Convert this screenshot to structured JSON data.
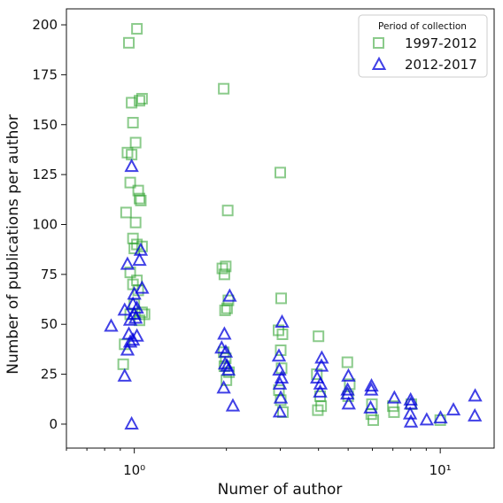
{
  "chart_data": {
    "type": "scatter",
    "xlabel": "Numer of author",
    "ylabel": "Number of publications per author",
    "xscale": "log",
    "xlim": [
      0.6,
      15
    ],
    "ylim": [
      -12,
      208
    ],
    "yticks": [
      0,
      25,
      50,
      75,
      100,
      125,
      150,
      175,
      200
    ],
    "xticks": [
      {
        "value": 1,
        "label": "10⁰"
      },
      {
        "value": 10,
        "label": "10¹"
      }
    ],
    "grid": false,
    "legend": {
      "title": "Period of collection",
      "placement": "top-right"
    },
    "series": [
      {
        "name": "1997-2012",
        "marker": "square",
        "color": "#2ca02c",
        "points": [
          [
            0.96,
            191
          ],
          [
            1.02,
            198
          ],
          [
            0.98,
            161
          ],
          [
            1.04,
            162
          ],
          [
            0.99,
            151
          ],
          [
            1.06,
            163
          ],
          [
            0.95,
            136
          ],
          [
            0.98,
            135
          ],
          [
            1.01,
            141
          ],
          [
            0.97,
            121
          ],
          [
            1.03,
            117
          ],
          [
            1.04,
            113
          ],
          [
            1.05,
            112
          ],
          [
            0.94,
            106
          ],
          [
            1.01,
            101
          ],
          [
            0.99,
            93
          ],
          [
            1.02,
            90
          ],
          [
            1.06,
            89
          ],
          [
            1.0,
            88
          ],
          [
            0.97,
            76
          ],
          [
            1.02,
            72
          ],
          [
            0.99,
            70
          ],
          [
            1.03,
            67
          ],
          [
            1.08,
            55
          ],
          [
            1.06,
            56
          ],
          [
            1.0,
            60
          ],
          [
            1.04,
            52
          ],
          [
            0.97,
            55
          ],
          [
            0.93,
            40
          ],
          [
            0.92,
            30
          ],
          [
            1.96,
            168
          ],
          [
            2.02,
            107
          ],
          [
            1.94,
            78
          ],
          [
            1.99,
            79
          ],
          [
            1.97,
            75
          ],
          [
            2.03,
            62
          ],
          [
            1.98,
            57
          ],
          [
            2.01,
            58
          ],
          [
            1.96,
            36
          ],
          [
            1.99,
            33
          ],
          [
            1.97,
            29
          ],
          [
            2.0,
            22
          ],
          [
            2.04,
            26
          ],
          [
            3.0,
            126
          ],
          [
            3.02,
            63
          ],
          [
            2.96,
            47
          ],
          [
            3.05,
            45
          ],
          [
            3.01,
            37
          ],
          [
            3.03,
            28
          ],
          [
            2.97,
            17
          ],
          [
            3.01,
            12
          ],
          [
            3.06,
            6
          ],
          [
            4.0,
            44
          ],
          [
            3.95,
            25
          ],
          [
            4.05,
            14
          ],
          [
            3.98,
            7
          ],
          [
            4.08,
            9
          ],
          [
            4.97,
            31
          ],
          [
            5.06,
            20
          ],
          [
            5.0,
            14
          ],
          [
            5.95,
            5
          ],
          [
            6.04,
            2
          ],
          [
            5.98,
            10
          ],
          [
            7.0,
            9
          ],
          [
            7.06,
            6
          ],
          [
            8.04,
            10
          ],
          [
            10.0,
            2
          ]
        ]
      },
      {
        "name": "2012-2017",
        "marker": "triangle",
        "color": "#0000dd",
        "points": [
          [
            0.98,
            129
          ],
          [
            0.95,
            80
          ],
          [
            1.04,
            82
          ],
          [
            1.05,
            87
          ],
          [
            1.06,
            68
          ],
          [
            1.0,
            65
          ],
          [
            0.99,
            60
          ],
          [
            1.02,
            58
          ],
          [
            0.93,
            57
          ],
          [
            0.97,
            52
          ],
          [
            1.01,
            53
          ],
          [
            0.84,
            49
          ],
          [
            0.96,
            45
          ],
          [
            0.99,
            42
          ],
          [
            1.02,
            44
          ],
          [
            0.97,
            41
          ],
          [
            0.95,
            37
          ],
          [
            0.93,
            24
          ],
          [
            0.98,
            0
          ],
          [
            1.0,
            55
          ],
          [
            2.05,
            64
          ],
          [
            1.97,
            45
          ],
          [
            1.93,
            38
          ],
          [
            1.99,
            36
          ],
          [
            1.98,
            30
          ],
          [
            2.01,
            29
          ],
          [
            2.03,
            27
          ],
          [
            1.96,
            18
          ],
          [
            2.1,
            9
          ],
          [
            3.04,
            51
          ],
          [
            2.97,
            34
          ],
          [
            2.98,
            27
          ],
          [
            3.03,
            23
          ],
          [
            2.99,
            20
          ],
          [
            3.01,
            13
          ],
          [
            2.99,
            6
          ],
          [
            4.1,
            33
          ],
          [
            4.09,
            29
          ],
          [
            3.96,
            23
          ],
          [
            4.06,
            20
          ],
          [
            4.05,
            16
          ],
          [
            5.01,
            24
          ],
          [
            4.98,
            17
          ],
          [
            4.97,
            15
          ],
          [
            5.02,
            10
          ],
          [
            5.96,
            19
          ],
          [
            5.95,
            17
          ],
          [
            5.92,
            8
          ],
          [
            7.08,
            13
          ],
          [
            8.0,
            12
          ],
          [
            8.02,
            10
          ],
          [
            7.97,
            5
          ],
          [
            8.02,
            1
          ],
          [
            9.03,
            2
          ],
          [
            10.02,
            3
          ],
          [
            11.04,
            7
          ],
          [
            13.0,
            14
          ],
          [
            12.97,
            4
          ]
        ]
      }
    ]
  }
}
